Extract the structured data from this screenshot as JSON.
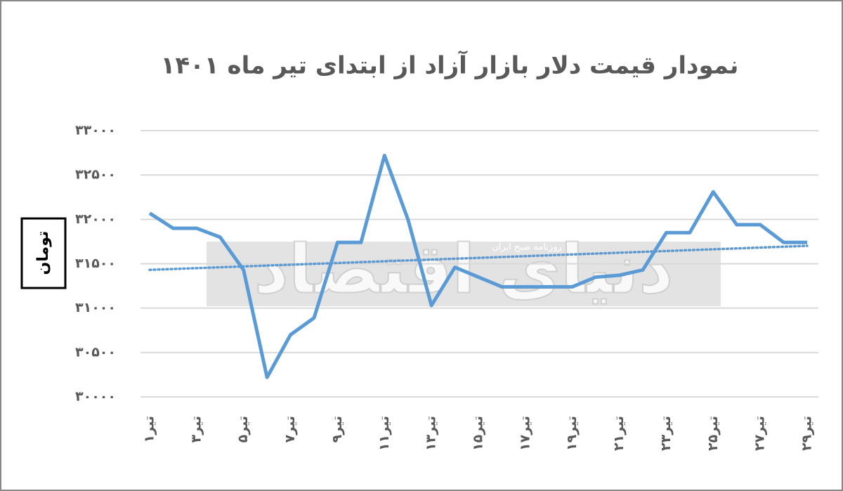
{
  "chart_data": {
    "type": "line",
    "title": "نمودار  قیمت دلار بازار آزاد از ابتدای تیر ماه ۱۴۰۱",
    "y_label": "تومان",
    "watermark": {
      "text": "دنیای اقتصاد",
      "subtext": "روزنامه صبح ایران"
    },
    "categories": [
      "تیر۱",
      null,
      "تیر۳",
      null,
      "تیر۵",
      null,
      "تیر۷",
      null,
      "تیر۹",
      null,
      "تیر۱۱",
      null,
      "تیر۱۳",
      null,
      "تیر۱۵",
      null,
      "تیر۱۷",
      null,
      "تیر۱۹",
      null,
      "تیر۲۱",
      null,
      "تیر۲۳",
      null,
      "تیر۲۵",
      null,
      "تیر۲۷",
      null,
      "تیر۲۹"
    ],
    "series": [
      {
        "name": "قیمت دلار",
        "color": "#5b9bd5",
        "values": [
          32070,
          31900,
          31900,
          31800,
          31430,
          30220,
          30700,
          30890,
          31740,
          31740,
          32720,
          32000,
          31030,
          31460,
          31350,
          31240,
          31240,
          31240,
          31240,
          31350,
          31370,
          31430,
          31850,
          31850,
          32310,
          31940,
          31940,
          31740,
          31740
        ]
      }
    ],
    "trendline": true,
    "ylim": [
      30000,
      33000
    ],
    "yticks": [
      {
        "value": 30000,
        "label": "۳۰۰۰۰"
      },
      {
        "value": 30500,
        "label": "۳۰۵۰۰"
      },
      {
        "value": 31000,
        "label": "۳۱۰۰۰"
      },
      {
        "value": 31500,
        "label": "۳۱۵۰۰"
      },
      {
        "value": 32000,
        "label": "۳۲۰۰۰"
      },
      {
        "value": 32500,
        "label": "۳۲۵۰۰"
      },
      {
        "value": 33000,
        "label": "۳۳۰۰۰"
      }
    ],
    "grid": true
  }
}
